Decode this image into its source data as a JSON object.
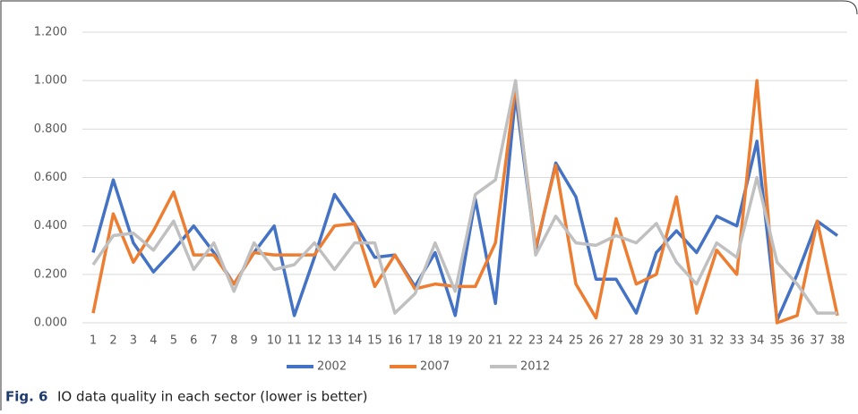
{
  "chart_data": {
    "type": "line",
    "categories": [
      "1",
      "2",
      "3",
      "4",
      "5",
      "6",
      "7",
      "8",
      "9",
      "10",
      "11",
      "12",
      "13",
      "14",
      "15",
      "16",
      "17",
      "18",
      "19",
      "20",
      "21",
      "22",
      "23",
      "24",
      "25",
      "26",
      "27",
      "28",
      "29",
      "30",
      "31",
      "32",
      "33",
      "34",
      "35",
      "36",
      "37",
      "38"
    ],
    "series": [
      {
        "name": "2002",
        "color": "#4472c4",
        "values": [
          0.29,
          0.59,
          0.33,
          0.21,
          0.3,
          0.4,
          0.29,
          0.16,
          0.29,
          0.4,
          0.03,
          0.27,
          0.53,
          0.41,
          0.27,
          0.28,
          0.15,
          0.29,
          0.03,
          0.51,
          0.08,
          0.94,
          0.3,
          0.66,
          0.52,
          0.18,
          0.18,
          0.04,
          0.29,
          0.38,
          0.29,
          0.44,
          0.4,
          0.75,
          0.01,
          0.2,
          0.42,
          0.36
        ]
      },
      {
        "name": "2007",
        "color": "#ed7d31",
        "values": [
          0.04,
          0.45,
          0.25,
          0.38,
          0.54,
          0.28,
          0.28,
          0.16,
          0.29,
          0.28,
          0.28,
          0.28,
          0.4,
          0.41,
          0.15,
          0.28,
          0.14,
          0.16,
          0.15,
          0.15,
          0.33,
          0.98,
          0.31,
          0.65,
          0.16,
          0.02,
          0.43,
          0.16,
          0.2,
          0.52,
          0.04,
          0.3,
          0.2,
          1.0,
          0.0,
          0.03,
          0.42,
          0.03
        ]
      },
      {
        "name": "2012",
        "color": "#c0c0c0",
        "values": [
          0.24,
          0.36,
          0.37,
          0.3,
          0.42,
          0.22,
          0.33,
          0.13,
          0.33,
          0.22,
          0.24,
          0.33,
          0.22,
          0.33,
          0.33,
          0.04,
          0.12,
          0.33,
          0.13,
          0.53,
          0.59,
          1.0,
          0.28,
          0.44,
          0.33,
          0.32,
          0.36,
          0.33,
          0.41,
          0.25,
          0.16,
          0.33,
          0.27,
          0.6,
          0.25,
          0.16,
          0.04,
          0.04
        ]
      }
    ],
    "ylim": [
      0,
      1.2
    ],
    "yticks": [
      {
        "value": 0,
        "label": "0.000"
      },
      {
        "value": 0.2,
        "label": "0.200"
      },
      {
        "value": 0.4,
        "label": "0.400"
      },
      {
        "value": 0.6,
        "label": "0.600"
      },
      {
        "value": 0.8,
        "label": "0.800"
      },
      {
        "value": 1,
        "label": "1.000"
      },
      {
        "value": 1.2,
        "label": "1.200"
      }
    ],
    "grid": true,
    "legend": "bottom"
  },
  "caption": {
    "label": "Fig. 6",
    "text": "IO data quality in each sector (lower is better)"
  }
}
